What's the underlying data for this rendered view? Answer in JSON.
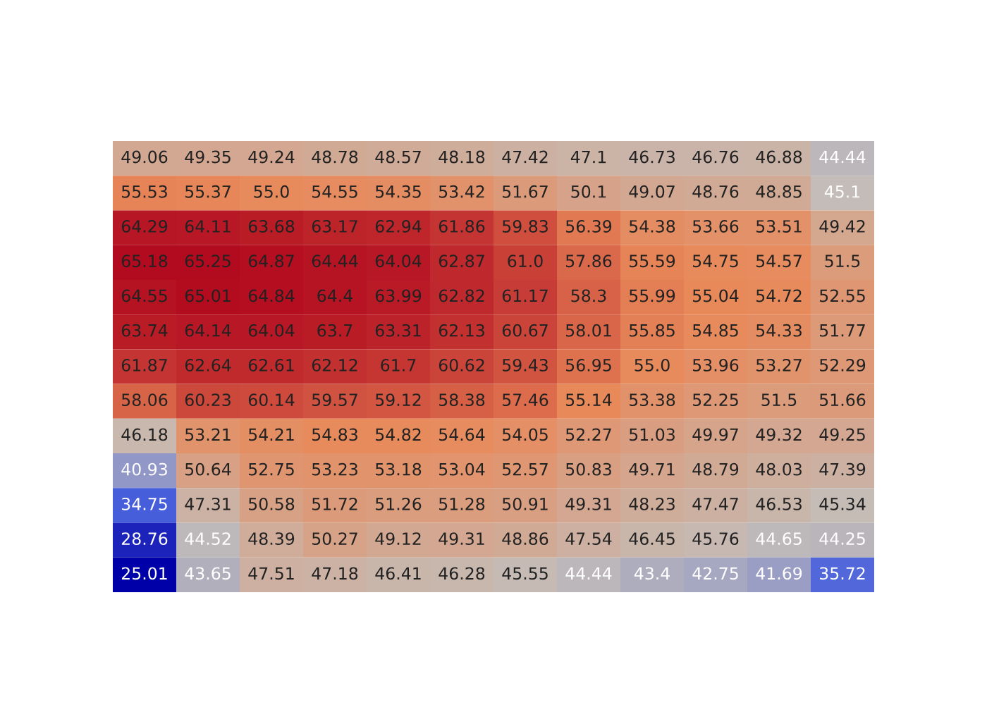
{
  "chart_data": {
    "type": "heatmap",
    "categories": [
      null,
      null,
      null,
      null,
      null,
      null,
      null,
      null,
      null,
      null,
      null,
      null
    ],
    "y_categories": [
      null,
      null,
      null,
      null,
      null,
      null,
      null,
      null,
      null,
      null,
      null,
      null,
      null
    ],
    "cells": [
      [
        49.06,
        49.35,
        49.24,
        48.78,
        48.57,
        48.18,
        47.42,
        47.1,
        46.73,
        46.76,
        46.88,
        44.44
      ],
      [
        55.53,
        55.37,
        55.0,
        54.55,
        54.35,
        53.42,
        51.67,
        50.1,
        49.07,
        48.76,
        48.85,
        45.1
      ],
      [
        64.29,
        64.11,
        63.68,
        63.17,
        62.94,
        61.86,
        59.83,
        56.39,
        54.38,
        53.66,
        53.51,
        49.42
      ],
      [
        65.18,
        65.25,
        64.87,
        64.44,
        64.04,
        62.87,
        61.0,
        57.86,
        55.59,
        54.75,
        54.57,
        51.5
      ],
      [
        64.55,
        65.01,
        64.84,
        64.4,
        63.99,
        62.82,
        61.17,
        58.3,
        55.99,
        55.04,
        54.72,
        52.55
      ],
      [
        63.74,
        64.14,
        64.04,
        63.7,
        63.31,
        62.13,
        60.67,
        58.01,
        55.85,
        54.85,
        54.33,
        51.77
      ],
      [
        61.87,
        62.64,
        62.61,
        62.12,
        61.7,
        60.62,
        59.43,
        56.95,
        55.0,
        53.96,
        53.27,
        52.29
      ],
      [
        58.06,
        60.23,
        60.14,
        59.57,
        59.12,
        58.38,
        57.46,
        55.14,
        53.38,
        52.25,
        51.5,
        51.66
      ],
      [
        46.18,
        53.21,
        54.21,
        54.83,
        54.82,
        54.64,
        54.05,
        52.27,
        51.03,
        49.97,
        49.32,
        49.25
      ],
      [
        40.93,
        50.64,
        52.75,
        53.23,
        53.18,
        53.04,
        52.57,
        50.83,
        49.71,
        48.79,
        48.03,
        47.39
      ],
      [
        34.75,
        47.31,
        50.58,
        51.72,
        51.26,
        51.28,
        50.91,
        49.31,
        48.23,
        47.47,
        46.53,
        45.34
      ],
      [
        28.76,
        44.52,
        48.39,
        50.27,
        49.12,
        49.31,
        48.86,
        47.54,
        46.45,
        45.76,
        44.65,
        44.25
      ],
      [
        25.01,
        43.65,
        47.51,
        47.18,
        46.41,
        46.28,
        45.55,
        44.44,
        43.4,
        42.75,
        41.69,
        35.72
      ]
    ],
    "cell_labels": [
      [
        "49.06",
        "49.35",
        "49.24",
        "48.78",
        "48.57",
        "48.18",
        "47.42",
        "47.1",
        "46.73",
        "46.76",
        "46.88",
        "44.44"
      ],
      [
        "55.53",
        "55.37",
        "55.0",
        "54.55",
        "54.35",
        "53.42",
        "51.67",
        "50.1",
        "49.07",
        "48.76",
        "48.85",
        "45.1"
      ],
      [
        "64.29",
        "64.11",
        "63.68",
        "63.17",
        "62.94",
        "61.86",
        "59.83",
        "56.39",
        "54.38",
        "53.66",
        "53.51",
        "49.42"
      ],
      [
        "65.18",
        "65.25",
        "64.87",
        "64.44",
        "64.04",
        "62.87",
        "61.0",
        "57.86",
        "55.59",
        "54.75",
        "54.57",
        "51.5"
      ],
      [
        "64.55",
        "65.01",
        "64.84",
        "64.4",
        "63.99",
        "62.82",
        "61.17",
        "58.3",
        "55.99",
        "55.04",
        "54.72",
        "52.55"
      ],
      [
        "63.74",
        "64.14",
        "64.04",
        "63.7",
        "63.31",
        "62.13",
        "60.67",
        "58.01",
        "55.85",
        "54.85",
        "54.33",
        "51.77"
      ],
      [
        "61.87",
        "62.64",
        "62.61",
        "62.12",
        "61.7",
        "60.62",
        "59.43",
        "56.95",
        "55.0",
        "53.96",
        "53.27",
        "52.29"
      ],
      [
        "58.06",
        "60.23",
        "60.14",
        "59.57",
        "59.12",
        "58.38",
        "57.46",
        "55.14",
        "53.38",
        "52.25",
        "51.5",
        "51.66"
      ],
      [
        "46.18",
        "53.21",
        "54.21",
        "54.83",
        "54.82",
        "54.64",
        "54.05",
        "52.27",
        "51.03",
        "49.97",
        "49.32",
        "49.25"
      ],
      [
        "40.93",
        "50.64",
        "52.75",
        "53.23",
        "53.18",
        "53.04",
        "52.57",
        "50.83",
        "49.71",
        "48.79",
        "48.03",
        "47.39"
      ],
      [
        "34.75",
        "47.31",
        "50.58",
        "51.72",
        "51.26",
        "51.28",
        "50.91",
        "49.31",
        "48.23",
        "47.47",
        "46.53",
        "45.34"
      ],
      [
        "28.76",
        "44.52",
        "48.39",
        "50.27",
        "49.12",
        "49.31",
        "48.86",
        "47.54",
        "46.45",
        "45.76",
        "44.65",
        "44.25"
      ],
      [
        "25.01",
        "43.65",
        "47.51",
        "47.18",
        "46.41",
        "46.28",
        "45.55",
        "44.44",
        "43.4",
        "42.75",
        "41.69",
        "35.72"
      ]
    ]
  }
}
